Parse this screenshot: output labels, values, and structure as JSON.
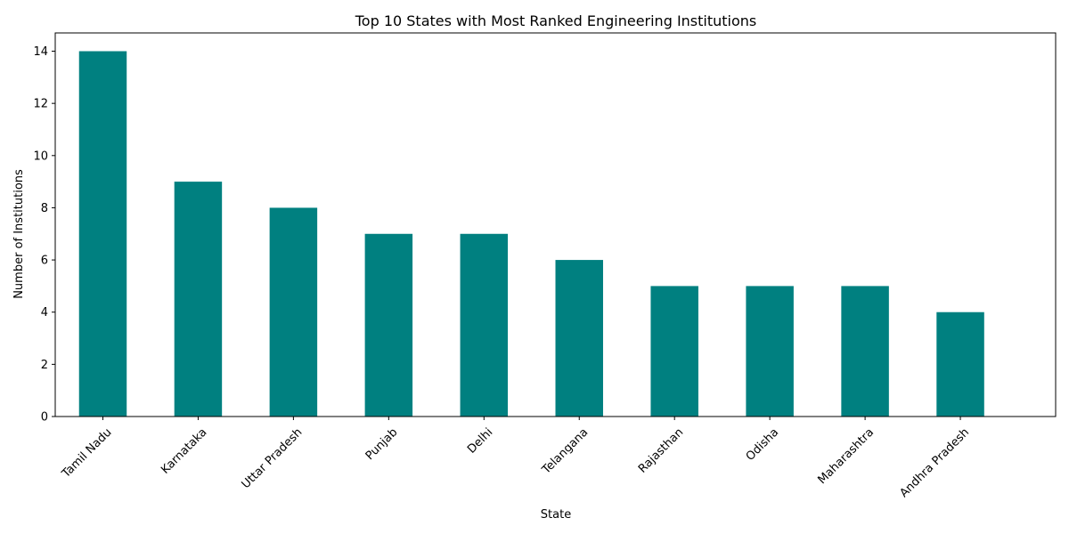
{
  "chart_data": {
    "type": "bar",
    "title": "Top 10 States with Most Ranked Engineering Institutions",
    "xlabel": "State",
    "ylabel": "Number of Institutions",
    "categories": [
      "Tamil Nadu",
      "Karnataka",
      "Uttar Pradesh",
      "Punjab",
      "Delhi",
      "Telangana",
      "Rajasthan",
      "Odisha",
      "Maharashtra",
      "Andhra Pradesh"
    ],
    "values": [
      14,
      9,
      8,
      7,
      7,
      6,
      5,
      5,
      5,
      4
    ],
    "ylim": [
      0,
      14.7
    ],
    "yticks": [
      0,
      2,
      4,
      6,
      8,
      10,
      12,
      14
    ],
    "bar_color": "#008080",
    "grid": false,
    "xtick_rotation": 45
  }
}
